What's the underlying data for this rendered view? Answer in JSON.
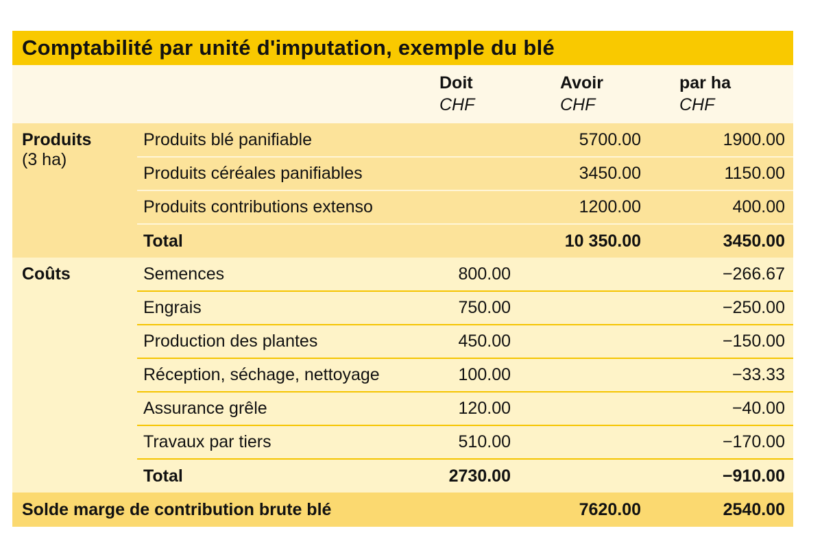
{
  "title": "Comptabilité par unité d'imputation, exemple du blé",
  "columns": [
    {
      "label": "Doit",
      "unit": "CHF"
    },
    {
      "label": "Avoir",
      "unit": "CHF"
    },
    {
      "label": "par ha",
      "unit": "CHF"
    }
  ],
  "produits": {
    "label": "Produits",
    "sublabel": "(3 ha)",
    "rows": [
      {
        "name": "Produits blé panifiable",
        "doit": "",
        "avoir": "5700.00",
        "par_ha": "1900.00"
      },
      {
        "name": "Produits céréales panifiables",
        "doit": "",
        "avoir": "3450.00",
        "par_ha": "1150.00"
      },
      {
        "name": "Produits contributions extenso",
        "doit": "",
        "avoir": "1200.00",
        "par_ha": "400.00"
      }
    ],
    "total": {
      "name": "Total",
      "doit": "",
      "avoir": "10 350.00",
      "par_ha": "3450.00"
    }
  },
  "couts": {
    "label": "Coûts",
    "rows": [
      {
        "name": "Semences",
        "doit": "800.00",
        "avoir": "",
        "par_ha": "−266.67"
      },
      {
        "name": "Engrais",
        "doit": "750.00",
        "avoir": "",
        "par_ha": "−250.00"
      },
      {
        "name": "Production des plantes",
        "doit": "450.00",
        "avoir": "",
        "par_ha": "−150.00"
      },
      {
        "name": "Réception, séchage, nettoyage",
        "doit": "100.00",
        "avoir": "",
        "par_ha": "−33.33"
      },
      {
        "name": "Assurance grêle",
        "doit": "120.00",
        "avoir": "",
        "par_ha": "−40.00"
      },
      {
        "name": "Travaux par tiers",
        "doit": "510.00",
        "avoir": "",
        "par_ha": "−170.00"
      }
    ],
    "total": {
      "name": "Total",
      "doit": "2730.00",
      "avoir": "",
      "par_ha": "−910.00"
    }
  },
  "solde": {
    "name": "Solde marge de contribution brute blé",
    "doit": "",
    "avoir": "7620.00",
    "par_ha": "2540.00"
  },
  "colors": {
    "title_bg": "#F9C900",
    "header_bg": "#FEF8E6",
    "produits_bg": "#FCE39A",
    "couts_bg": "#FEF3C8",
    "solde_bg": "#FBD970",
    "rule": "#F5C400"
  }
}
